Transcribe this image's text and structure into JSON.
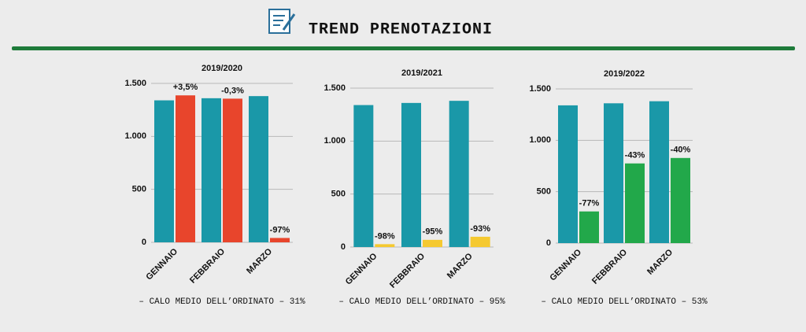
{
  "header": {
    "title": "TREND PRENOTAZIONI"
  },
  "chart_data": [
    {
      "type": "bar",
      "title": "2019/2020",
      "categories": [
        "GENNAIO",
        "FEBBRAIO",
        "MARZO"
      ],
      "series": [
        {
          "color": "#1a98a8",
          "values": [
            1340,
            1360,
            1380
          ]
        },
        {
          "color": "#e8452c",
          "values": [
            1387,
            1356,
            41
          ]
        }
      ],
      "annotations": [
        "+3,5%",
        "-0,3%",
        "-97%"
      ],
      "ylim": [
        0,
        1500
      ],
      "yticks": [
        0,
        500,
        {
          "value": 1000,
          "label": "1.000"
        },
        {
          "value": 1500,
          "label": "1.500"
        }
      ],
      "grid": true,
      "note": "– CALO MEDIO DELL’ORDINATO – 31%"
    },
    {
      "type": "bar",
      "title": "2019/2021",
      "categories": [
        "GENNAIO",
        "FEBBRAIO",
        "MARZO"
      ],
      "series": [
        {
          "color": "#1a98a8",
          "values": [
            1340,
            1360,
            1380
          ]
        },
        {
          "color": "#f5c930",
          "values": [
            27,
            68,
            97
          ]
        }
      ],
      "annotations": [
        "-98%",
        "-95%",
        "-93%"
      ],
      "ylim": [
        0,
        1500
      ],
      "yticks": [
        0,
        500,
        {
          "value": 1000,
          "label": "1.000"
        },
        {
          "value": 1500,
          "label": "1.500"
        }
      ],
      "grid": true,
      "note": "– CALO MEDIO DELL’ORDINATO – 95%"
    },
    {
      "type": "bar",
      "title": "2019/2022",
      "categories": [
        "GENNAIO",
        "FEBBRAIO",
        "MARZO"
      ],
      "series": [
        {
          "color": "#1a98a8",
          "values": [
            1340,
            1360,
            1380
          ]
        },
        {
          "color": "#22a84a",
          "values": [
            308,
            775,
            828
          ]
        }
      ],
      "annotations": [
        "-77%",
        "-43%",
        "-40%"
      ],
      "ylim": [
        0,
        1500
      ],
      "yticks": [
        0,
        500,
        {
          "value": 1000,
          "label": "1.000"
        },
        {
          "value": 1500,
          "label": "1.500"
        }
      ],
      "grid": true,
      "note": "– CALO MEDIO DELL’ORDINATO – 53%"
    }
  ]
}
